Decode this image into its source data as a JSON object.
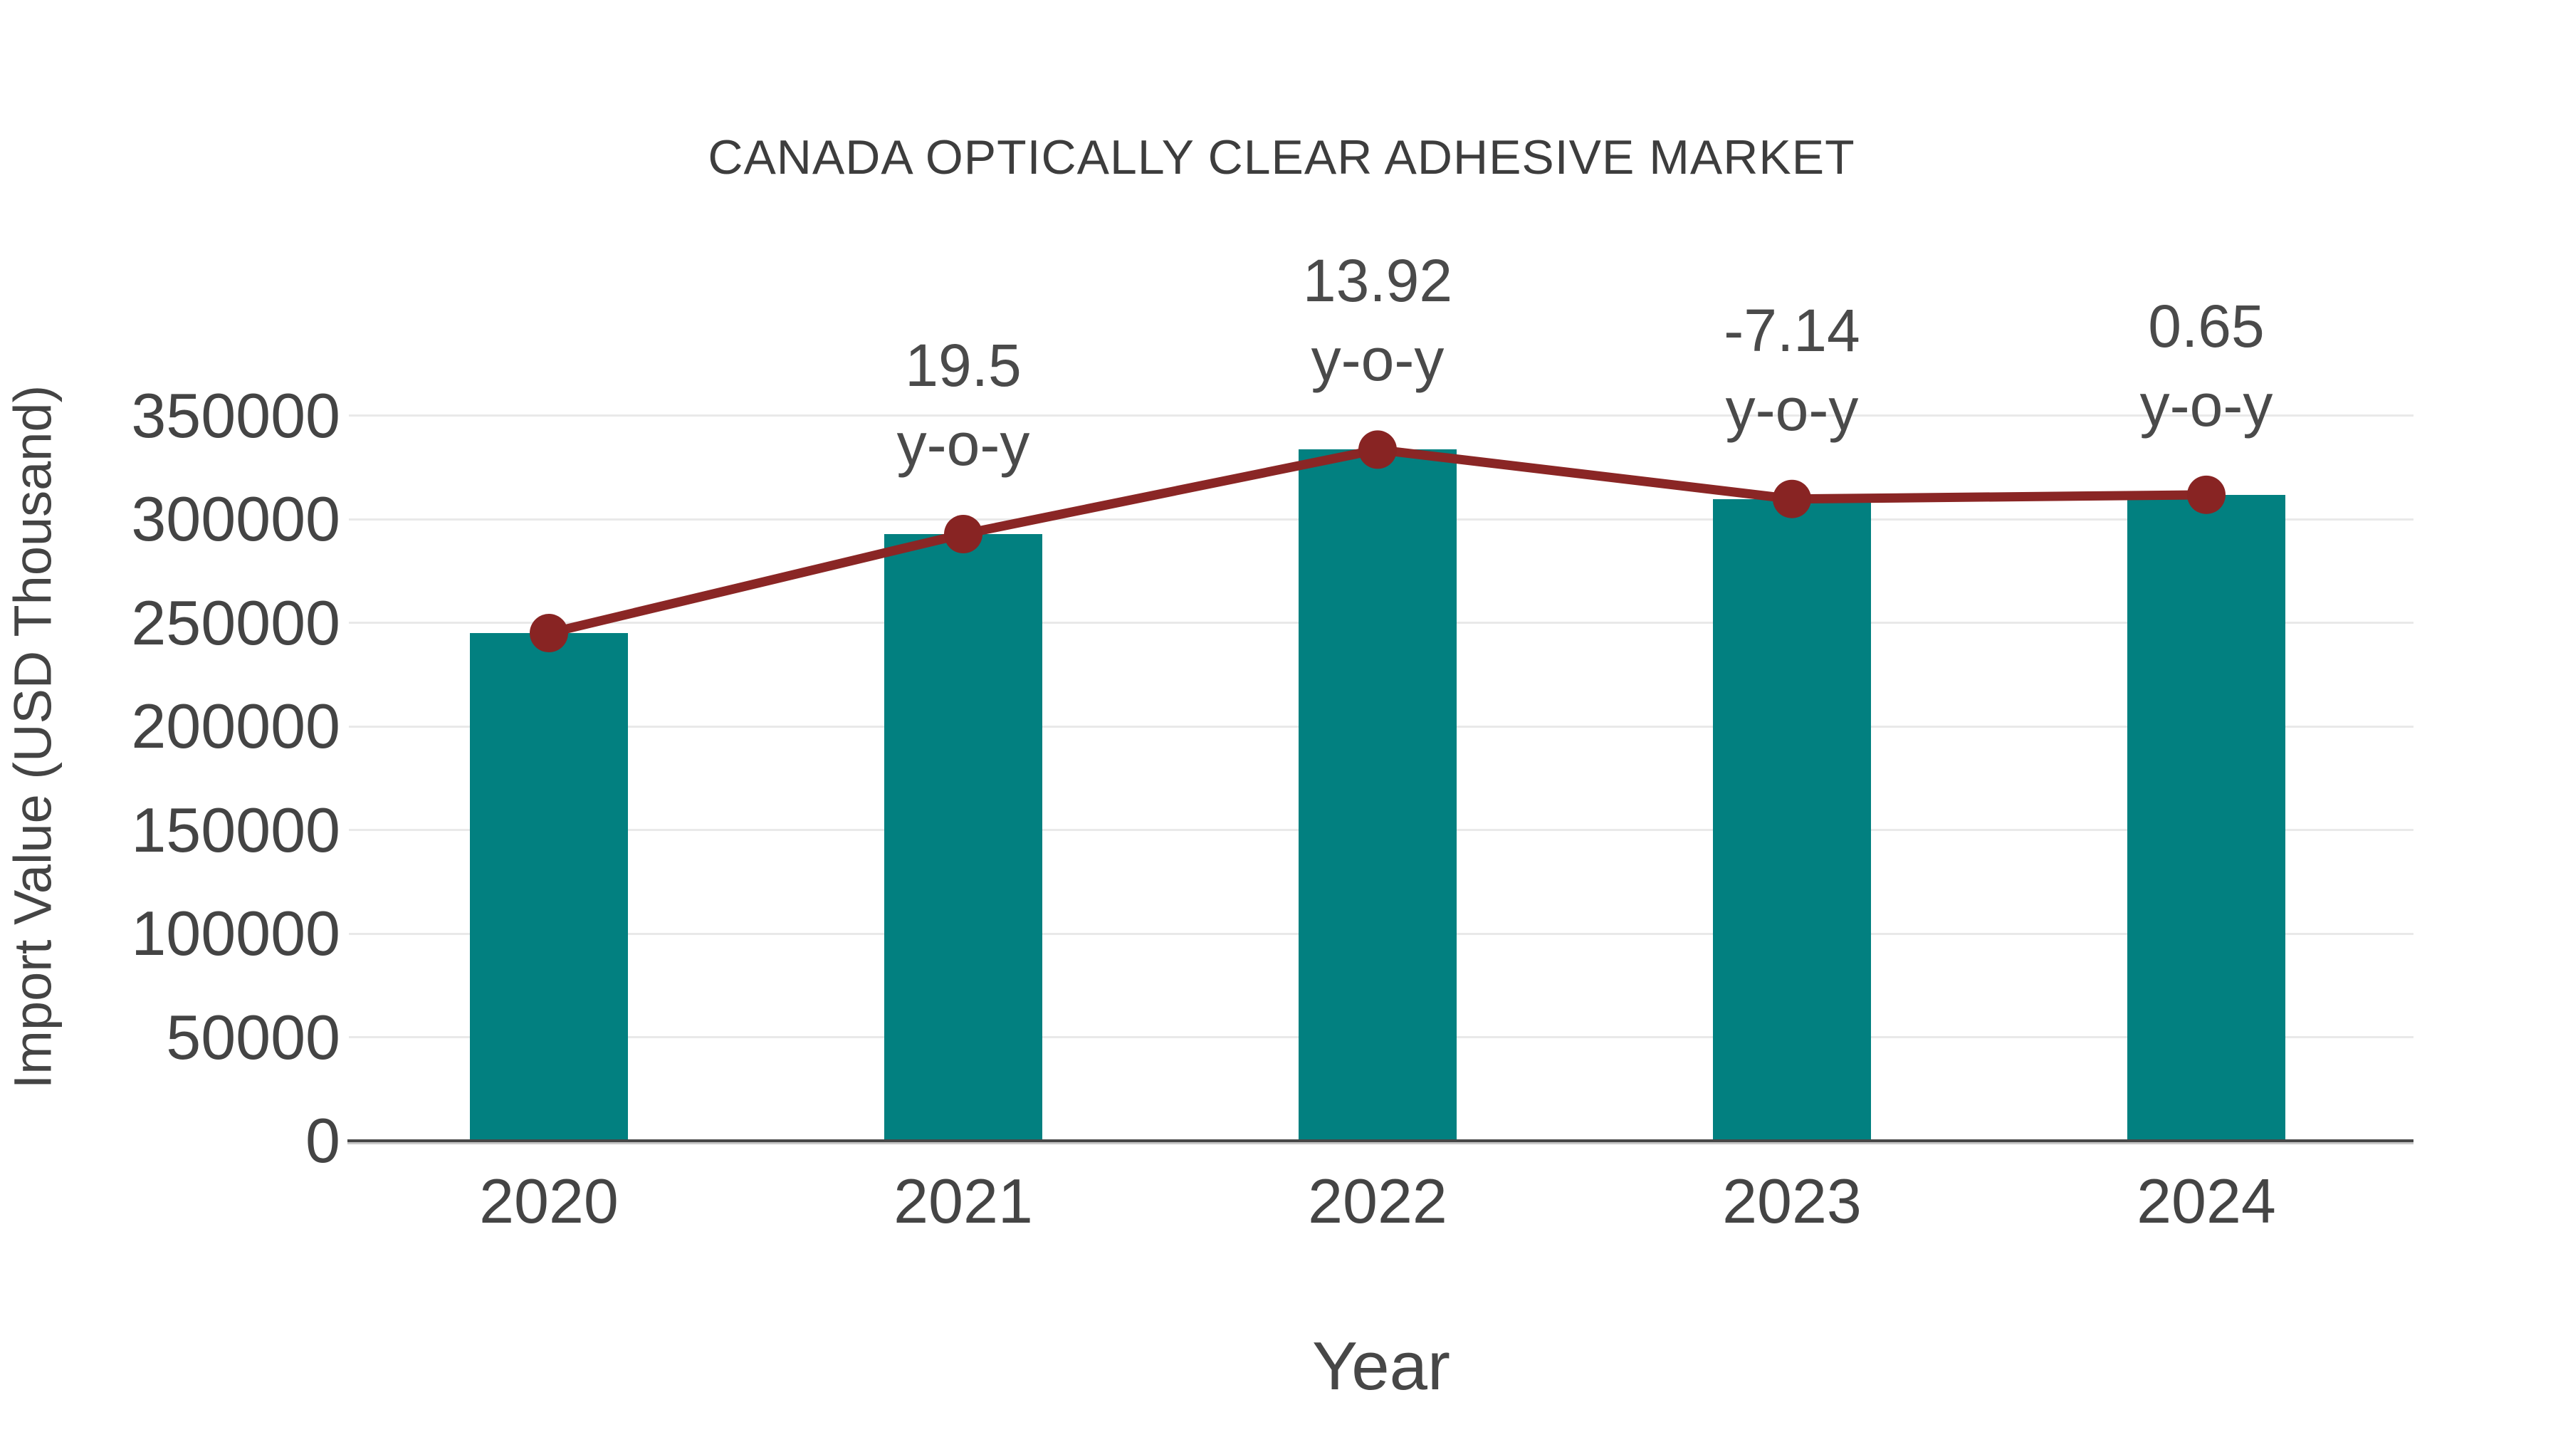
{
  "chart_data": {
    "type": "bar",
    "title": "CANADA OPTICALLY CLEAR ADHESIVE MARKET",
    "xlabel": "Year",
    "ylabel": "Import Value (USD Thousand)",
    "categories": [
      "2020",
      "2021",
      "2022",
      "2023",
      "2024"
    ],
    "series": [
      {
        "name": "Import Value (USD Thousand)",
        "type": "bar",
        "values": [
          245000,
          292775,
          333530,
          309715,
          311730
        ]
      },
      {
        "name": "y-o-y trend line",
        "type": "line",
        "values": [
          245000,
          292775,
          333530,
          309715,
          311730
        ]
      }
    ],
    "point_labels": [
      null,
      "19.5",
      "13.92",
      "-7.14",
      "0.65"
    ],
    "point_label_suffix": "y-o-y",
    "yticks": [
      0,
      50000,
      100000,
      150000,
      200000,
      250000,
      300000,
      350000
    ],
    "ylim": [
      0,
      385000
    ],
    "grid": "horizontal",
    "legend": "none"
  },
  "colors": {
    "bar": "#028080",
    "line": "#8a2625",
    "marker": "#882423",
    "grid": "#e9e9e9",
    "axis": "#474747",
    "text": "#444444",
    "title_text": "#3d3d3d"
  }
}
